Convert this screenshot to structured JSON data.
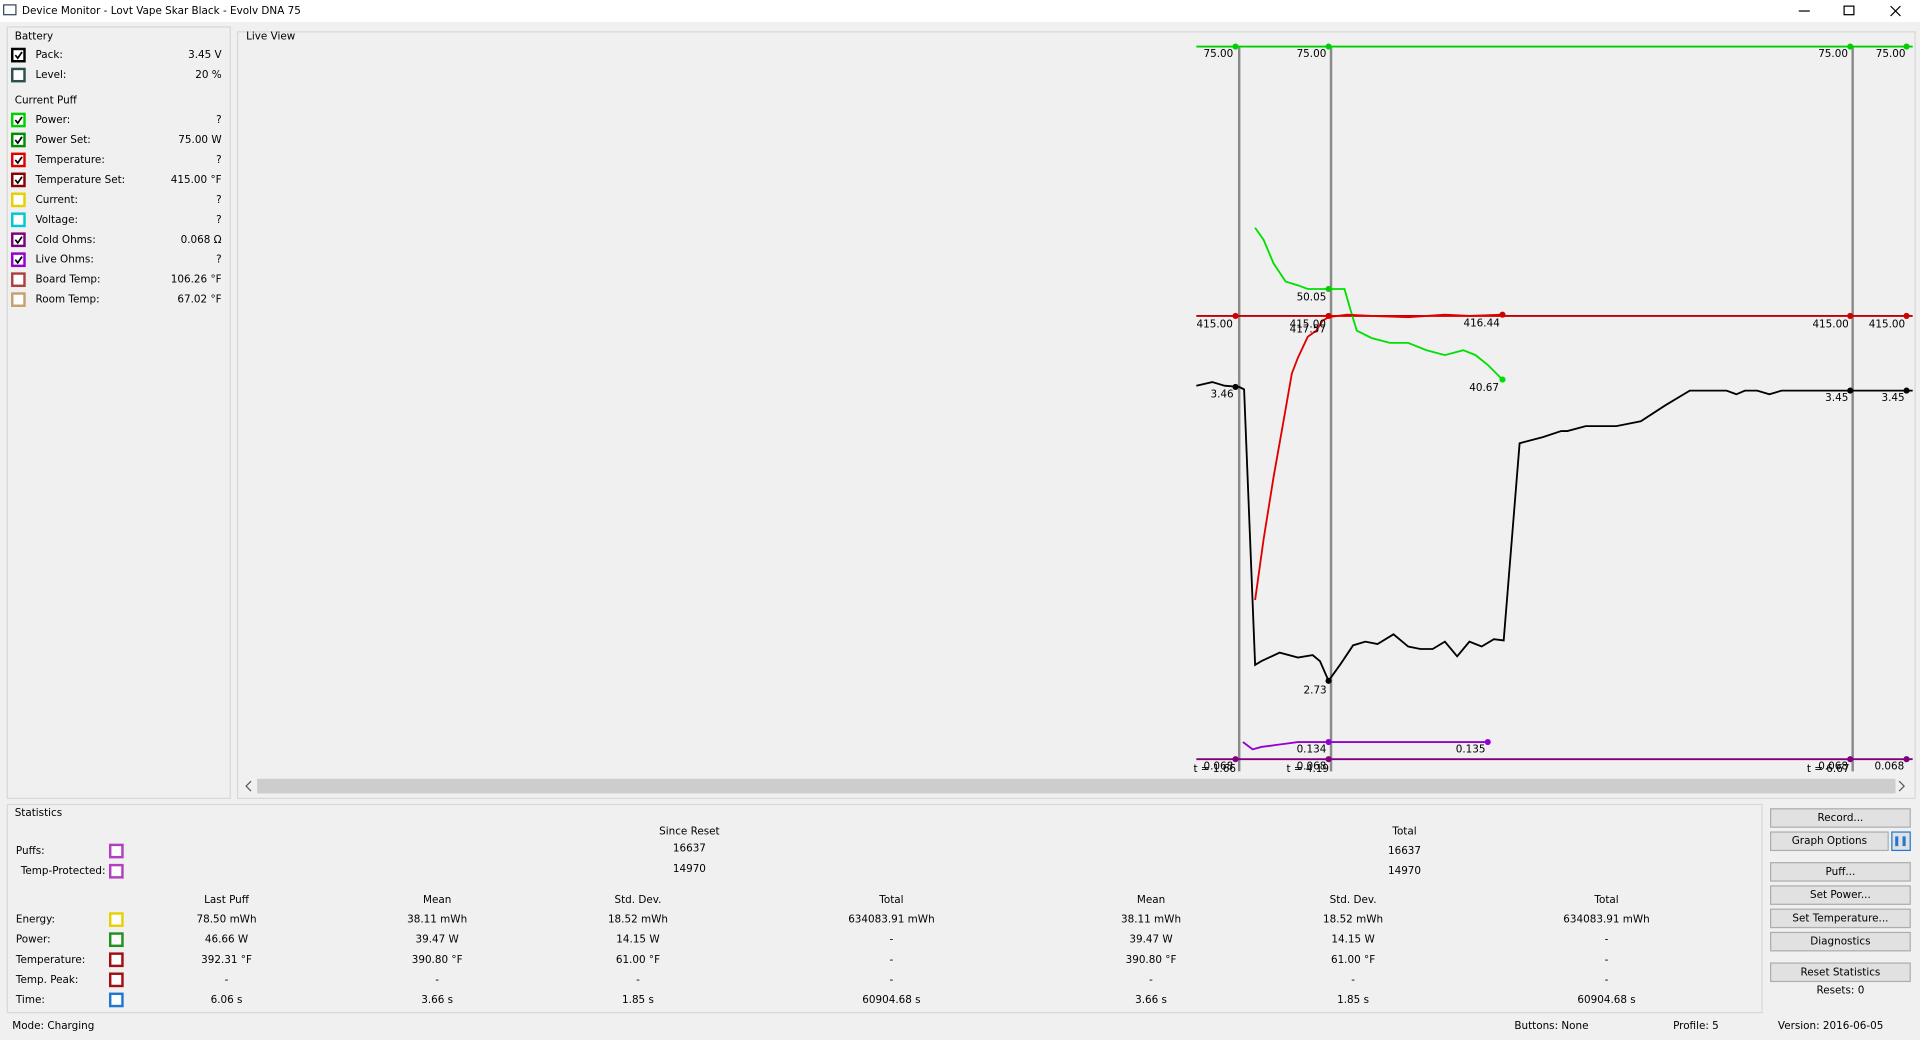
{
  "window": {
    "title": "Device Monitor - Lovt Vape Skar Black - Evolv DNA 75"
  },
  "battery": {
    "title": "Battery",
    "items": [
      {
        "label": "Pack:",
        "value": "3.45 V",
        "checked": true,
        "color": "#000000"
      },
      {
        "label": "Level:",
        "value": "20 %",
        "checked": false,
        "color": "#2f4f4f"
      }
    ]
  },
  "current_puff": {
    "title": "Current Puff",
    "items": [
      {
        "label": "Power:",
        "value": "?",
        "checked": true,
        "color": "#00d000"
      },
      {
        "label": "Power Set:",
        "value": "75.00 W",
        "checked": true,
        "color": "#008f00"
      },
      {
        "label": "Temperature:",
        "value": "?",
        "checked": true,
        "color": "#e00000"
      },
      {
        "label": "Temperature Set:",
        "value": "415.00 °F",
        "checked": true,
        "color": "#8b0000"
      },
      {
        "label": "Current:",
        "value": "?",
        "checked": false,
        "color": "#e8d000"
      },
      {
        "label": "Voltage:",
        "value": "?",
        "checked": false,
        "color": "#00c8d0"
      },
      {
        "label": "Cold Ohms:",
        "value": "0.068 Ω",
        "checked": true,
        "color": "#800080"
      },
      {
        "label": "Live Ohms:",
        "value": "?",
        "checked": true,
        "color": "#9400d3"
      },
      {
        "label": "Board Temp:",
        "value": "106.26 °F",
        "checked": false,
        "color": "#b04040"
      },
      {
        "label": "Room Temp:",
        "value": "67.02 °F",
        "checked": false,
        "color": "#c8a070"
      }
    ]
  },
  "live_view": {
    "title": "Live View",
    "labels": [
      "75.00",
      "75.00",
      "75.00",
      "75.00",
      "50.05",
      "415.00",
      "415.00",
      "417.57",
      "416.44",
      "415.00",
      "415.00",
      "3.46",
      "40.67",
      "3.45",
      "3.45",
      "2.73",
      "0.134",
      "0.135",
      "0.068",
      "0.068",
      "0.068",
      "0.068",
      "t = 1.66",
      "t = 4.19",
      "t = 6.67"
    ]
  },
  "statistics": {
    "title": "Statistics",
    "since_reset": "Since Reset",
    "total": "Total",
    "counts": [
      {
        "label": "Puffs:",
        "color": "#b040c0",
        "since_reset": "16637",
        "total": "16637"
      },
      {
        "label": "Temp-Protected:",
        "color": "#b040c0",
        "since_reset": "14970",
        "total": "14970"
      }
    ],
    "columns": [
      "Last Puff",
      "Mean",
      "Std. Dev.",
      "Total",
      "Mean",
      "Std. Dev.",
      "Total"
    ],
    "rows": [
      {
        "label": "Energy:",
        "color": "#e8d000",
        "cells": [
          "78.50 mWh",
          "38.11 mWh",
          "18.52 mWh",
          "634083.91 mWh",
          "38.11 mWh",
          "18.52 mWh",
          "634083.91 mWh"
        ]
      },
      {
        "label": "Power:",
        "color": "#209020",
        "cells": [
          "46.66 W",
          "39.47 W",
          "14.15 W",
          "-",
          "39.47 W",
          "14.15 W",
          "-"
        ]
      },
      {
        "label": "Temperature:",
        "color": "#a01010",
        "cells": [
          "392.31 °F",
          "390.80 °F",
          "61.00 °F",
          "-",
          "390.80 °F",
          "61.00 °F",
          "-"
        ]
      },
      {
        "label": "Temp. Peak:",
        "color": "#a01010",
        "cells": [
          "-",
          "-",
          "-",
          "-",
          "-",
          "-",
          "-"
        ]
      },
      {
        "label": "Time:",
        "color": "#1e78d0",
        "cells": [
          "6.06 s",
          "3.66 s",
          "1.85 s",
          "60904.68 s",
          "3.66 s",
          "1.85 s",
          "60904.68 s"
        ]
      }
    ]
  },
  "buttons": [
    "Record...",
    "Graph Options",
    "Puff...",
    "Set Power...",
    "Set Temperature...",
    "Diagnostics",
    "Reset Statistics"
  ],
  "resets": "Resets: 0",
  "status": {
    "mode": "Mode: Charging",
    "buttons": "Buttons: None",
    "profile": "Profile: 5",
    "version": "Version: 2016-06-05"
  }
}
